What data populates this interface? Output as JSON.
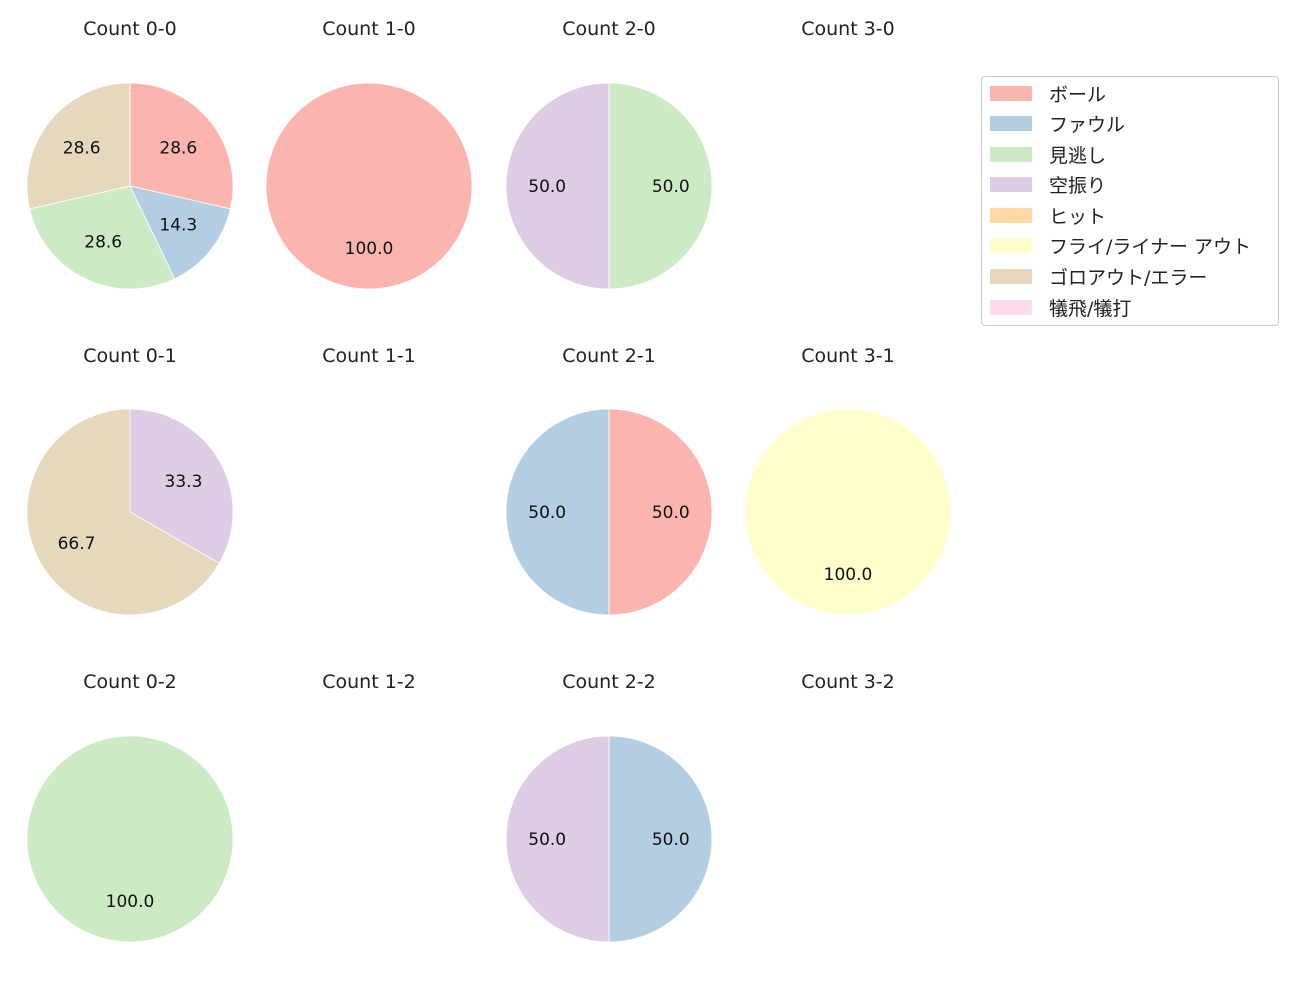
{
  "chart_data": {
    "type": "pie",
    "layout": {
      "rows": 3,
      "cols": 4,
      "startangle": 90,
      "counterclock": false,
      "legend_position": "upper right"
    },
    "categories": [
      "ボール",
      "ファウル",
      "見逃し",
      "空振り",
      "ヒット",
      "フライ/ライナー アウト",
      "ゴロアウト/エラー",
      "犠飛/犠打"
    ],
    "colors": [
      "#fbb4ae",
      "#b3cde3",
      "#ccebc5",
      "#decbe4",
      "#fed9a6",
      "#ffffcc",
      "#e5d8bd",
      "#fddaec"
    ],
    "charts": [
      {
        "title": "Count 0-0",
        "row": 0,
        "col": 0,
        "values": [
          28.6,
          14.3,
          28.6,
          0,
          0,
          0,
          28.6,
          0
        ]
      },
      {
        "title": "Count 1-0",
        "row": 0,
        "col": 1,
        "values": [
          100.0,
          0,
          0,
          0,
          0,
          0,
          0,
          0
        ]
      },
      {
        "title": "Count 2-0",
        "row": 0,
        "col": 2,
        "values": [
          0,
          0,
          50.0,
          50.0,
          0,
          0,
          0,
          0
        ]
      },
      {
        "title": "Count 3-0",
        "row": 0,
        "col": 3,
        "values": []
      },
      {
        "title": "Count 0-1",
        "row": 1,
        "col": 0,
        "values": [
          0,
          0,
          0,
          33.3,
          0,
          0,
          66.7,
          0
        ]
      },
      {
        "title": "Count 1-1",
        "row": 1,
        "col": 1,
        "values": []
      },
      {
        "title": "Count 2-1",
        "row": 1,
        "col": 2,
        "values": [
          50.0,
          50.0,
          0,
          0,
          0,
          0,
          0,
          0
        ]
      },
      {
        "title": "Count 3-1",
        "row": 1,
        "col": 3,
        "values": [
          0,
          0,
          0,
          0,
          0,
          100.0,
          0,
          0
        ]
      },
      {
        "title": "Count 0-2",
        "row": 2,
        "col": 0,
        "values": [
          0,
          0,
          100.0,
          0,
          0,
          0,
          0,
          0
        ]
      },
      {
        "title": "Count 1-2",
        "row": 2,
        "col": 1,
        "values": []
      },
      {
        "title": "Count 2-2",
        "row": 2,
        "col": 2,
        "values": [
          0,
          50.0,
          0,
          50.0,
          0,
          0,
          0,
          0
        ]
      },
      {
        "title": "Count 3-2",
        "row": 2,
        "col": 3,
        "values": []
      }
    ]
  },
  "legend": {
    "items": [
      {
        "label": "ボール",
        "color": "#fbb4ae"
      },
      {
        "label": "ファウル",
        "color": "#b3cde3"
      },
      {
        "label": "見逃し",
        "color": "#ccebc5"
      },
      {
        "label": "空振り",
        "color": "#decbe4"
      },
      {
        "label": "ヒット",
        "color": "#fed9a6"
      },
      {
        "label": "フライ/ライナー アウト",
        "color": "#ffffcc"
      },
      {
        "label": "ゴロアウト/エラー",
        "color": "#e5d8bd"
      },
      {
        "label": "犠飛/犠打",
        "color": "#fddaec"
      }
    ]
  }
}
